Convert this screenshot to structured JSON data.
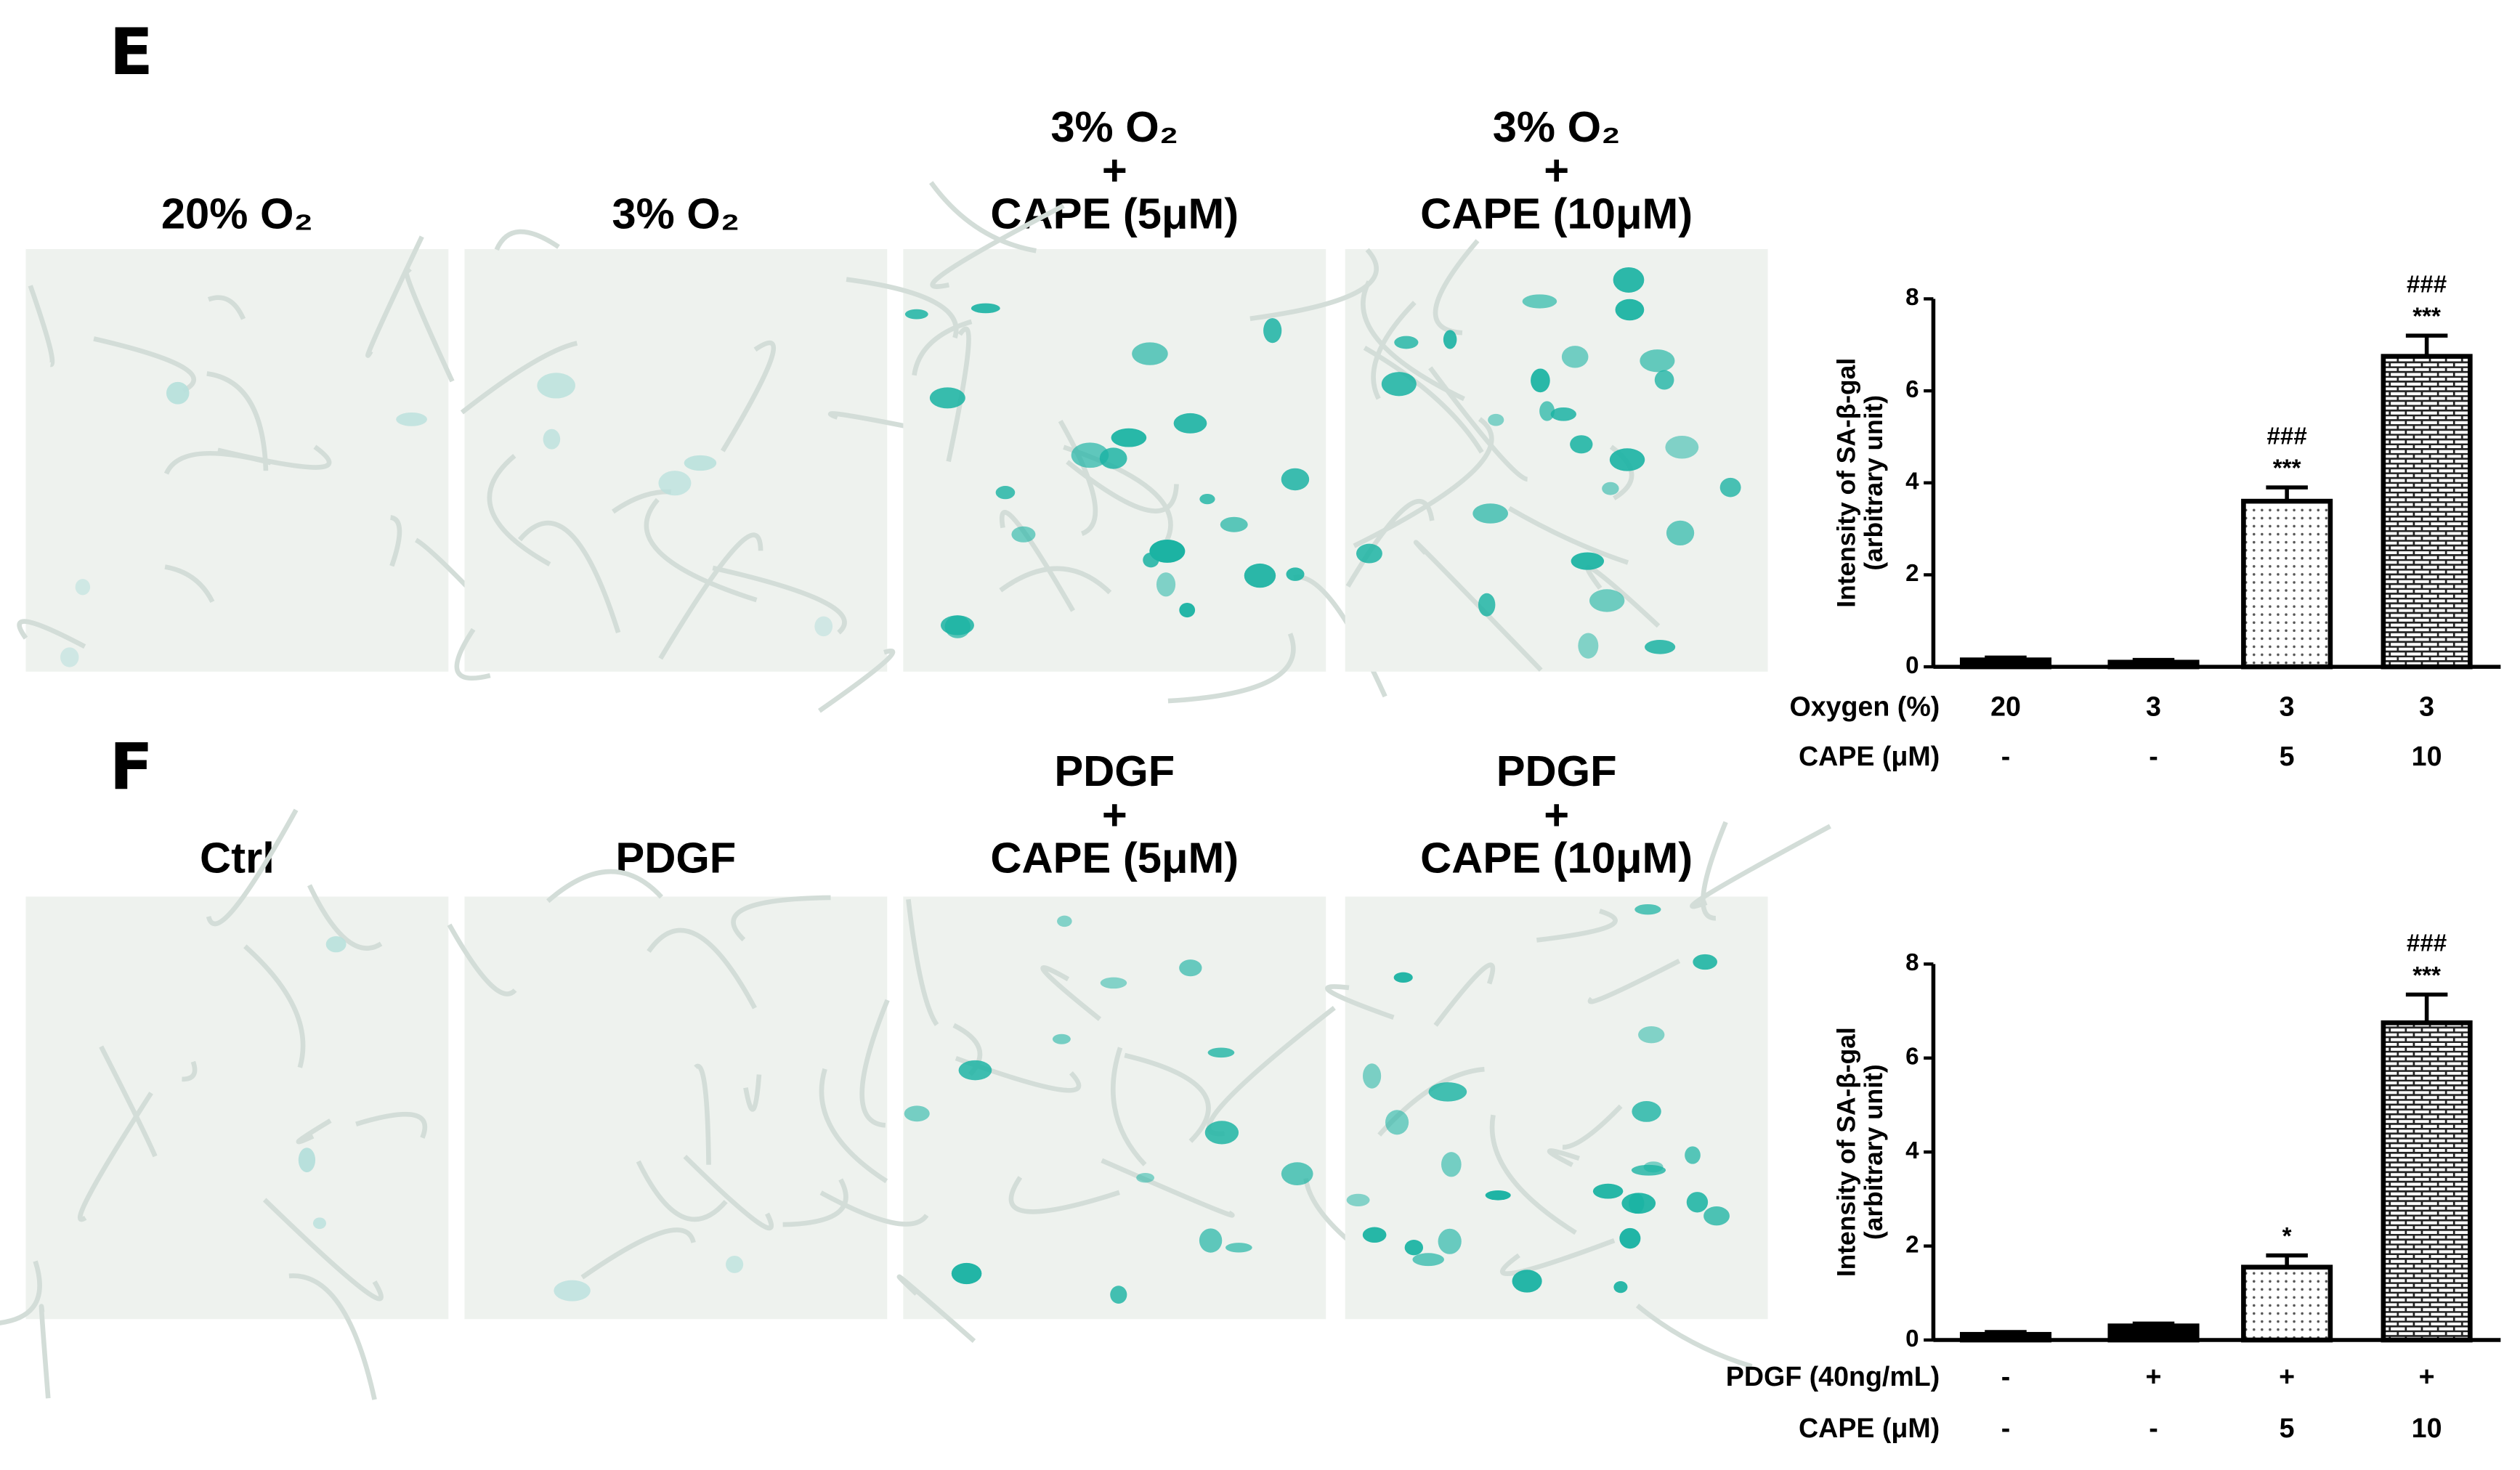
{
  "panels": [
    {
      "label": "E",
      "titles": [
        [
          "20% O₂"
        ],
        [
          "3% O₂"
        ],
        [
          "3% O₂",
          "+",
          "CAPE (5μM)"
        ],
        [
          "3% O₂",
          "+",
          "CAPE (10μM)"
        ]
      ]
    },
    {
      "label": "F",
      "titles": [
        [
          "Ctrl"
        ],
        [
          "PDGF"
        ],
        [
          "PDGF",
          "+",
          "CAPE (5μM)"
        ],
        [
          "PDGF",
          "+",
          "CAPE (10μM)"
        ]
      ]
    }
  ],
  "chart_data": [
    {
      "type": "bar",
      "y_label": [
        "Intensity of SA-β-gal",
        "(arbitrary unit)"
      ],
      "values": [
        0.15,
        0.1,
        3.6,
        6.75
      ],
      "errors": [
        0.05,
        0.05,
        0.3,
        0.45
      ],
      "fills": [
        "solid",
        "solid",
        "dots",
        "bricks"
      ],
      "color": "#000000",
      "significance": [
        [],
        [],
        [
          "###",
          "***"
        ],
        [
          "###",
          "***"
        ]
      ],
      "condition_rows": [
        {
          "name": "Oxygen (%)",
          "values": [
            "20",
            "3",
            "3",
            "3"
          ]
        },
        {
          "name": "CAPE (μM)",
          "values": [
            "-",
            "-",
            "5",
            "10"
          ]
        }
      ],
      "ylim": [
        0,
        8
      ],
      "yticks": [
        0,
        2,
        4,
        6,
        8
      ]
    },
    {
      "type": "bar",
      "y_label": [
        "Intensity of SA-β-gal",
        "(arbitrary unit)"
      ],
      "values": [
        0.12,
        0.3,
        1.55,
        6.75
      ],
      "errors": [
        0.05,
        0.05,
        0.25,
        0.6
      ],
      "fills": [
        "solid",
        "solid",
        "dots",
        "bricks"
      ],
      "color": "#000000",
      "significance": [
        [],
        [],
        [
          "*"
        ],
        [
          "###",
          "***"
        ]
      ],
      "condition_rows": [
        {
          "name": "PDGF (40ng/mL)",
          "values": [
            "-",
            "+",
            "+",
            "+"
          ]
        },
        {
          "name": "CAPE (μM)",
          "values": [
            "-",
            "-",
            "5",
            "10"
          ]
        }
      ],
      "ylim": [
        0,
        8
      ],
      "yticks": [
        0,
        2,
        4,
        6,
        8
      ]
    }
  ]
}
